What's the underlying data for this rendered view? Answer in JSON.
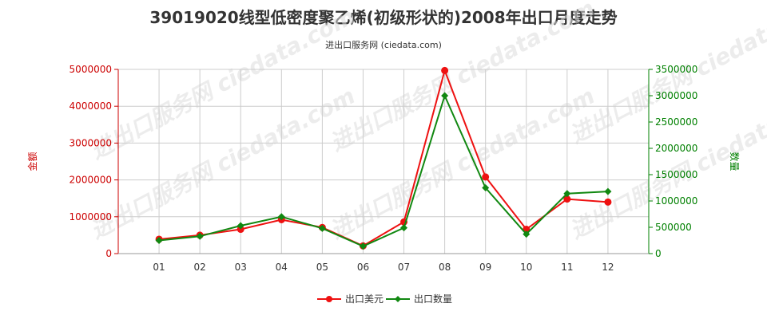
{
  "title": "39019020线型低密度聚乙烯(初级形状的)2008年出口月度走势",
  "subtitle": "进出口服务网 (ciedata.com)",
  "watermark": "进出口服务网 ciedata.com",
  "colors": {
    "left_axis": "#cc0000",
    "right_axis": "#008000",
    "grid": "#cccccc",
    "series_usd": "#ee1111",
    "series_qty": "#118811"
  },
  "chart_data": {
    "type": "line",
    "categories": [
      "01",
      "02",
      "03",
      "04",
      "05",
      "06",
      "07",
      "08",
      "09",
      "10",
      "11",
      "12"
    ],
    "y_left": {
      "label": "金额",
      "lim": [
        0,
        5000000
      ],
      "ticks": [
        0,
        1000000,
        2000000,
        3000000,
        4000000,
        5000000
      ],
      "tick_labels": [
        "0",
        "1000000",
        "2000000",
        "3000000",
        "4000000",
        "5000000"
      ]
    },
    "y_right": {
      "label": "数量",
      "lim": [
        0,
        3500000
      ],
      "ticks": [
        0,
        500000,
        1000000,
        1500000,
        2000000,
        2500000,
        3000000,
        3500000
      ],
      "tick_labels": [
        "0",
        "500000",
        "1000000",
        "1500000",
        "2000000",
        "2500000",
        "3000000",
        "3500000"
      ]
    },
    "grid": true,
    "legend_position": "bottom-center",
    "series": [
      {
        "name": "出口美元",
        "axis": "left",
        "values": [
          390000,
          500000,
          660000,
          920000,
          710000,
          210000,
          860000,
          4970000,
          2080000,
          660000,
          1480000,
          1400000
        ]
      },
      {
        "name": "出口数量",
        "axis": "right",
        "values": [
          250000,
          330000,
          530000,
          700000,
          480000,
          140000,
          490000,
          3000000,
          1250000,
          370000,
          1140000,
          1180000
        ]
      }
    ]
  }
}
